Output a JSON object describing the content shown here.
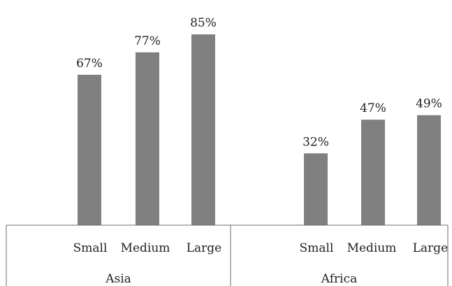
{
  "chart_data": {
    "type": "bar",
    "groups": [
      {
        "label": "Asia",
        "categories": [
          "Small",
          "Medium",
          "Large"
        ],
        "values": [
          67,
          77,
          85
        ],
        "value_labels": [
          "67%",
          "77%",
          "85%"
        ]
      },
      {
        "label": "Africa",
        "categories": [
          "Small",
          "Medium",
          "Large"
        ],
        "values": [
          32,
          47,
          49
        ],
        "value_labels": [
          "32%",
          "47%",
          "49%"
        ]
      }
    ],
    "unit": "%",
    "ylim": [
      0,
      100
    ],
    "grid": false,
    "legend": "none",
    "bar_color": "#808080",
    "axis_color": "#6e6e6e"
  }
}
